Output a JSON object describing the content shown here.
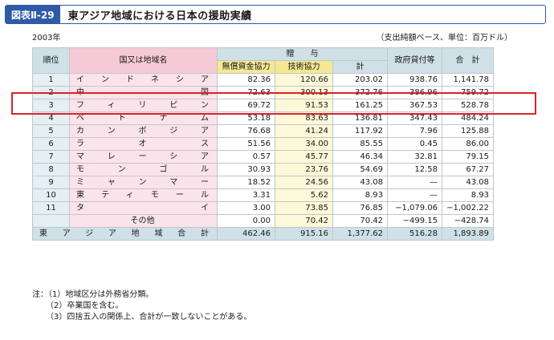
{
  "figure": {
    "label": "図表Ⅱ-29",
    "title": "東アジア地域における日本の援助実績"
  },
  "year": "2003年",
  "unit": "（支出純額ベース、単位：百万ドル）",
  "headers": {
    "rank": "順位",
    "region": "国又は地域名",
    "grant_group": "贈　　与",
    "grant_aid": "無償資金協力",
    "tech": "技術協力",
    "subtotal": "計",
    "loans": "政府貸付等",
    "total": "合　計"
  },
  "rows": [
    {
      "rank": "1",
      "name": "インドネシア",
      "grant": "82.36",
      "tech": "120.66",
      "subtotal": "203.02",
      "loans": "938.76",
      "total": "1,141.78"
    },
    {
      "rank": "2",
      "name": "中国",
      "grant": "72.63",
      "tech": "300.13",
      "subtotal": "372.76",
      "loans": "386.96",
      "total": "759.72"
    },
    {
      "rank": "3",
      "name": "フィリピン",
      "grant": "69.72",
      "tech": "91.53",
      "subtotal": "161.25",
      "loans": "367.53",
      "total": "528.78"
    },
    {
      "rank": "4",
      "name": "ベトナム",
      "grant": "53.18",
      "tech": "83.63",
      "subtotal": "136.81",
      "loans": "347.43",
      "total": "484.24"
    },
    {
      "rank": "5",
      "name": "カンボジア",
      "grant": "76.68",
      "tech": "41.24",
      "subtotal": "117.92",
      "loans": "7.96",
      "total": "125.88"
    },
    {
      "rank": "6",
      "name": "ラオス",
      "grant": "51.56",
      "tech": "34.00",
      "subtotal": "85.55",
      "loans": "0.45",
      "total": "86.00"
    },
    {
      "rank": "7",
      "name": "マレーシア",
      "grant": "0.57",
      "tech": "45.77",
      "subtotal": "46.34",
      "loans": "32.81",
      "total": "79.15"
    },
    {
      "rank": "8",
      "name": "モンゴル",
      "grant": "30.93",
      "tech": "23.76",
      "subtotal": "54.69",
      "loans": "12.58",
      "total": "67.27"
    },
    {
      "rank": "9",
      "name": "ミャンマー",
      "grant": "18.52",
      "tech": "24.56",
      "subtotal": "43.08",
      "loans": "—",
      "total": "43.08"
    },
    {
      "rank": "10",
      "name": "東ティモール",
      "grant": "3.31",
      "tech": "5.62",
      "subtotal": "8.93",
      "loans": "—",
      "total": "8.93"
    },
    {
      "rank": "11",
      "name": "タイ",
      "grant": "3.00",
      "tech": "73.85",
      "subtotal": "76.85",
      "loans": "−1,079.06",
      "total": "−1,002.22"
    },
    {
      "rank": "",
      "name": "その他",
      "grant": "0.00",
      "tech": "70.42",
      "subtotal": "70.42",
      "loans": "−499.15",
      "total": "−428.74"
    }
  ],
  "total_row": {
    "name": "東アジア地域合計",
    "grant": "462.46",
    "tech": "915.16",
    "subtotal": "1,377.62",
    "loans": "516.28",
    "total": "1,893.89"
  },
  "notes": [
    "注：（1）地域区分は外務省分類。",
    "（2）卒業国を含む。",
    "（3）四捨五入の関係上、合計が一致しないことがある。"
  ]
}
